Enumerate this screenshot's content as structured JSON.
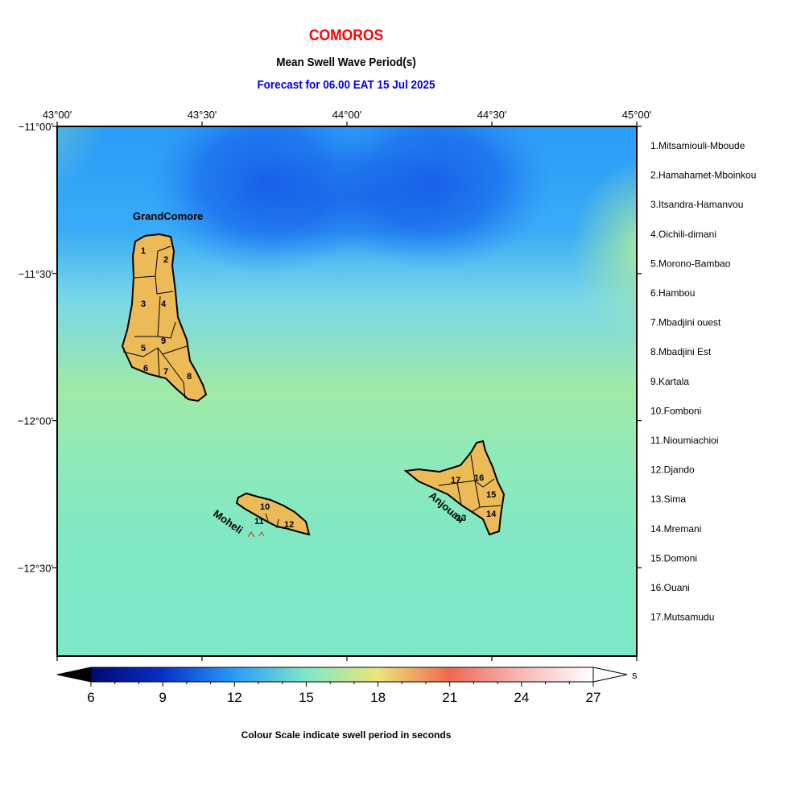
{
  "header": {
    "title": "COMOROS",
    "subtitle": "Mean Swell Wave Period(s)",
    "forecast": "Forecast for  06.00 EAT 15 Jul 2025"
  },
  "axes": {
    "lon_ticks": [
      {
        "label": "43°00'",
        "value": 43.0
      },
      {
        "label": "43°30'",
        "value": 43.5
      },
      {
        "label": "44°00'",
        "value": 44.0
      },
      {
        "label": "44°30'",
        "value": 44.5
      },
      {
        "label": "45°00'",
        "value": 45.0
      }
    ],
    "lat_ticks": [
      {
        "label": "−11°00'",
        "value": -11.0
      },
      {
        "label": "−11°30'",
        "value": -11.5
      },
      {
        "label": "−12°00'",
        "value": -12.0
      },
      {
        "label": "−12°30'",
        "value": -12.5
      }
    ],
    "lon_range": [
      43.0,
      45.0
    ],
    "lat_range": [
      -12.8,
      -11.0
    ]
  },
  "islands": {
    "grand_comore": "GrandComore",
    "moheli": "Moheli",
    "anjouan": "Anjouan"
  },
  "regions": [
    "1.Mitsamiouli-Mboude",
    "2.Hamahamet-Mboinkou",
    "3.Itsandra-Hamanvou",
    "4.Oichili-dimani",
    "5.Morono-Bambao",
    "6.Hambou",
    "7.Mbadjini ouest",
    "8.Mbadjini Est",
    "9.Kartala",
    "10.Fomboni",
    "11.Nioumiachioi",
    "12.Djando",
    "13.Sima",
    "14.Mremani",
    "15.Domoni",
    "16.Ouani",
    "17.Mutsamudu"
  ],
  "colorbar": {
    "ticks": [
      "6",
      "9",
      "12",
      "15",
      "18",
      "21",
      "24",
      "27"
    ],
    "min": 6,
    "max": 27,
    "unit": "s",
    "caption": "Colour Scale indicate swell period in seconds"
  },
  "colors": {
    "land": "#eebc58",
    "water_low": "#1660e6",
    "water_mid": "#7fe8c8",
    "water_high": "#a4eaa8"
  }
}
